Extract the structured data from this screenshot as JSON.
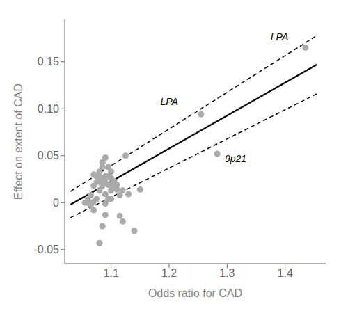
{
  "chart_data": {
    "type": "scatter",
    "xlabel": "Odds ratio for CAD",
    "ylabel": "Effect on extent of CAD",
    "xlim": [
      1.02,
      1.47
    ],
    "ylim": [
      -0.065,
      0.195
    ],
    "xticks": [
      1.1,
      1.2,
      1.3,
      1.4
    ],
    "yticks": [
      -0.05,
      0,
      0.05,
      {
        "value": 0.1,
        "label": "0.10"
      },
      0.15
    ],
    "grid": false,
    "color": "#aaaaaa",
    "marker": "circle",
    "points": [
      [
        1.055,
        0.0
      ],
      [
        1.06,
        0.003
      ],
      [
        1.065,
        0.008
      ],
      [
        1.07,
        0.018
      ],
      [
        1.07,
        0.03
      ],
      [
        1.075,
        0.022
      ],
      [
        1.075,
        0.028
      ],
      [
        1.08,
        0.013
      ],
      [
        1.08,
        0.022
      ],
      [
        1.08,
        0.028
      ],
      [
        1.08,
        0.033
      ],
      [
        1.085,
        0.018
      ],
      [
        1.085,
        0.026
      ],
      [
        1.085,
        0.038
      ],
      [
        1.085,
        0.043
      ],
      [
        1.09,
        -0.001
      ],
      [
        1.09,
        0.009
      ],
      [
        1.09,
        0.022
      ],
      [
        1.09,
        0.028
      ],
      [
        1.09,
        0.048
      ],
      [
        1.095,
        0.004
      ],
      [
        1.095,
        0.019
      ],
      [
        1.095,
        0.028
      ],
      [
        1.095,
        0.038
      ],
      [
        1.1,
        0.013
      ],
      [
        1.1,
        0.019
      ],
      [
        1.1,
        0.026
      ],
      [
        1.1,
        0.033
      ],
      [
        1.105,
        0.023
      ],
      [
        1.105,
        0.017
      ],
      [
        1.11,
        0.014
      ],
      [
        1.11,
        0.019
      ],
      [
        1.115,
        0.008
      ],
      [
        1.115,
        -0.014
      ],
      [
        1.12,
        0.013
      ],
      [
        1.12,
        -0.02
      ],
      [
        1.125,
        0.05
      ],
      [
        1.13,
        0.009
      ],
      [
        1.14,
        -0.03
      ],
      [
        1.15,
        0.014
      ],
      [
        1.065,
        -0.003
      ],
      [
        1.07,
        -0.008
      ],
      [
        1.085,
        -0.025
      ],
      [
        1.09,
        -0.013
      ],
      [
        1.1,
        0.004
      ],
      [
        1.075,
        0.004
      ],
      [
        1.08,
        -0.043
      ],
      [
        1.06,
        0.0
      ],
      [
        1.065,
        -0.001
      ],
      [
        1.07,
        0.001
      ]
    ],
    "labeled_points": [
      {
        "x": 1.255,
        "y": 0.094,
        "label": "LPA",
        "label_x": 1.185,
        "label_y": 0.104
      },
      {
        "x": 1.283,
        "y": 0.052,
        "label": "9p21",
        "label_x": 1.296,
        "label_y": 0.043
      },
      {
        "x": 1.435,
        "y": 0.165,
        "label": "LPA",
        "label_x": 1.375,
        "label_y": 0.173
      }
    ],
    "lines": [
      {
        "x": [
          1.03,
          1.455
        ],
        "y": [
          -0.002,
          0.147
        ],
        "color": "#000000",
        "line_style": "solid"
      },
      {
        "x": [
          1.03,
          1.455
        ],
        "y": [
          0.012,
          0.178
        ],
        "color": "#000000",
        "line_style": "dashed"
      },
      {
        "x": [
          1.03,
          1.455
        ],
        "y": [
          -0.016,
          0.116
        ],
        "color": "#000000",
        "line_style": "dashed"
      }
    ]
  }
}
